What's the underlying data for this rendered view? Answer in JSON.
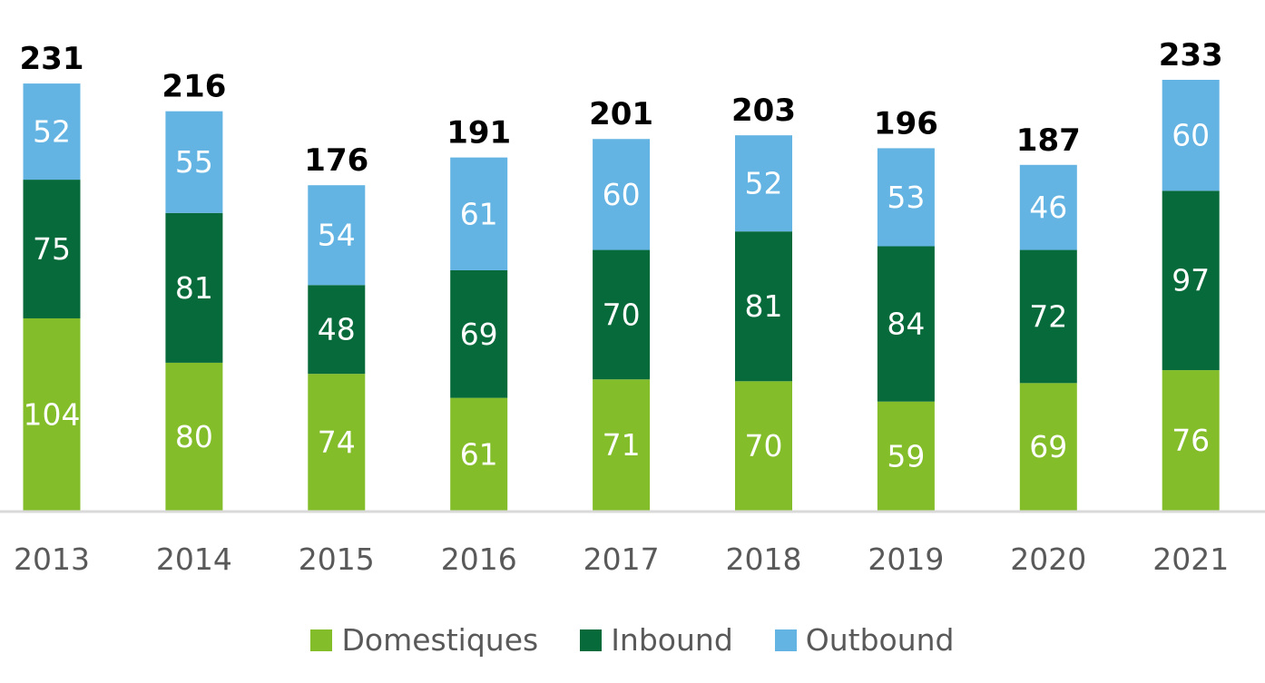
{
  "chart_data": {
    "type": "bar",
    "stacked": true,
    "categories": [
      "2013",
      "2014",
      "2015",
      "2016",
      "2017",
      "2018",
      "2019",
      "2020",
      "2021"
    ],
    "series": [
      {
        "name": "Domestiques",
        "color": "#84bd2a",
        "values": [
          104,
          80,
          74,
          61,
          71,
          70,
          59,
          69,
          76
        ]
      },
      {
        "name": "Inbound",
        "color": "#066a3a",
        "values": [
          75,
          81,
          48,
          69,
          70,
          81,
          84,
          72,
          97
        ]
      },
      {
        "name": "Outbound",
        "color": "#64b4e3",
        "values": [
          52,
          55,
          54,
          61,
          60,
          52,
          53,
          46,
          60
        ]
      }
    ],
    "totals": [
      231,
      216,
      176,
      191,
      201,
      203,
      196,
      187,
      233
    ],
    "title": "",
    "xlabel": "",
    "ylabel": "",
    "ylim": [
      0,
      233
    ],
    "grid": false,
    "legend_position": "bottom",
    "axis_color": "#d9d9d9"
  }
}
